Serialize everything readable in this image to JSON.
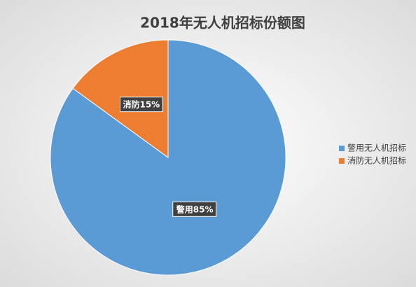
{
  "chart_data": {
    "type": "pie",
    "title": "2018年无人机招标份额图",
    "categories": [
      "警用无人机招标",
      "消防无人机招标"
    ],
    "values": [
      85,
      15
    ],
    "value_labels": [
      "警用85%",
      "消防15%"
    ],
    "colors": [
      "#5b9bd5",
      "#ed7d31"
    ],
    "legend": "right"
  }
}
